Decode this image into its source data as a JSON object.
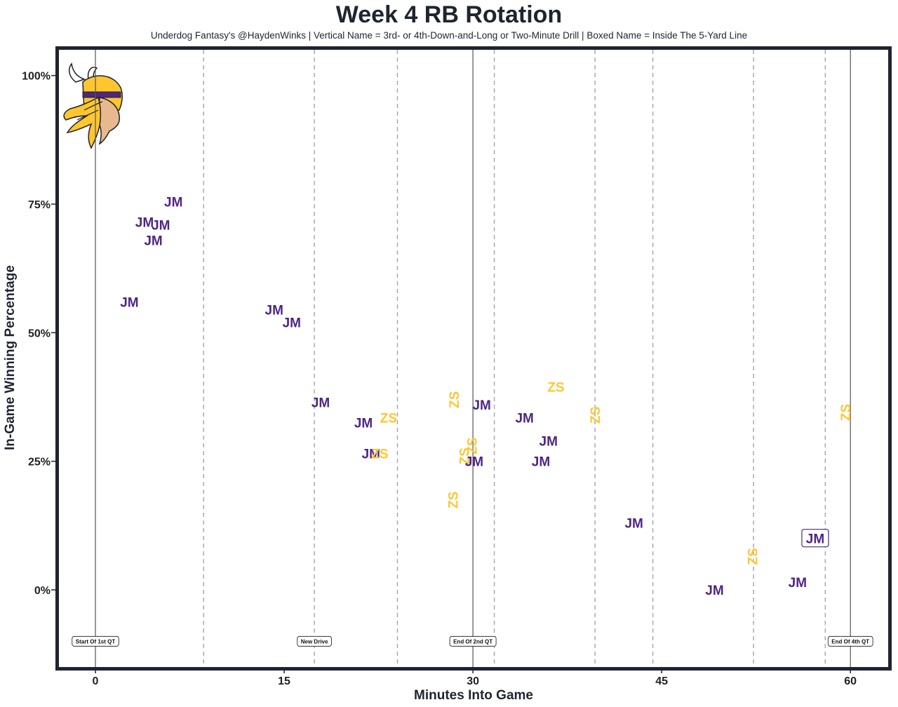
{
  "chart_data": {
    "type": "scatter",
    "title": "Week 4 RB Rotation",
    "subtitle": "Underdog Fantasy's @HaydenWinks | Vertical Name = 3rd- or 4th-Down-and-Long or Two-Minute Drill | Boxed Name = Inside The 5-Yard Line",
    "xlabel": "Minutes Into Game",
    "ylabel": "In-Game Winning Percentage",
    "xlim": [
      -2.9,
      63.0
    ],
    "ylim": [
      -15,
      105
    ],
    "xticks": [
      0,
      15,
      30,
      45,
      60
    ],
    "xtick_labels": [
      "0",
      "15",
      "30",
      "45",
      "60"
    ],
    "yticks": [
      0,
      25,
      50,
      75,
      100
    ],
    "ytick_labels": [
      "0%",
      "25%",
      "50%",
      "75%",
      "100%"
    ],
    "grid": false,
    "colors": {
      "JM": "#4f2683",
      "ZS": "#ffc62f",
      "frame": "#1f2430",
      "dashed": "#aaaaaa",
      "solid": "#555555"
    },
    "logo": "vikings-logo",
    "quarter_lines": [
      0,
      30,
      60
    ],
    "drive_lines": [
      8.6,
      17.4,
      24.0,
      31.7,
      39.7,
      44.3,
      52.3,
      58.0
    ],
    "annotations": [
      {
        "x": 0,
        "text": "Start Of 1st QT"
      },
      {
        "x": 17.4,
        "text": "New Drive"
      },
      {
        "x": 30,
        "text": "End Of 2nd QT"
      },
      {
        "x": 60,
        "text": "End Of 4th QT"
      }
    ],
    "points": [
      {
        "label": "JM",
        "x": 6.2,
        "y": 75.5,
        "vertical": false,
        "boxed": false
      },
      {
        "label": "JM",
        "x": 3.9,
        "y": 71.5,
        "vertical": false,
        "boxed": false
      },
      {
        "label": "JM",
        "x": 5.2,
        "y": 71.0,
        "vertical": false,
        "boxed": false
      },
      {
        "label": "JM",
        "x": 4.6,
        "y": 68.0,
        "vertical": false,
        "boxed": false
      },
      {
        "label": "JM",
        "x": 2.7,
        "y": 56.0,
        "vertical": false,
        "boxed": false
      },
      {
        "label": "JM",
        "x": 14.2,
        "y": 54.5,
        "vertical": false,
        "boxed": false
      },
      {
        "label": "JM",
        "x": 15.6,
        "y": 52.0,
        "vertical": false,
        "boxed": false
      },
      {
        "label": "JM",
        "x": 17.9,
        "y": 36.5,
        "vertical": false,
        "boxed": false
      },
      {
        "label": "JM",
        "x": 21.3,
        "y": 32.5,
        "vertical": false,
        "boxed": false
      },
      {
        "label": "ZS",
        "x": 23.3,
        "y": 33.5,
        "vertical": false,
        "boxed": false
      },
      {
        "label": "JM",
        "x": 21.9,
        "y": 26.5,
        "vertical": false,
        "boxed": false
      },
      {
        "label": "ZS",
        "x": 22.6,
        "y": 26.5,
        "vertical": false,
        "boxed": false
      },
      {
        "label": "ZS",
        "x": 28.5,
        "y": 37.0,
        "vertical": true,
        "boxed": false
      },
      {
        "label": "ZS",
        "x": 28.4,
        "y": 17.5,
        "vertical": true,
        "boxed": false
      },
      {
        "label": "ZS",
        "x": 29.3,
        "y": 26.0,
        "vertical": true,
        "boxed": false
      },
      {
        "label": "ZS",
        "x": 29.9,
        "y": 28.0,
        "vertical": true,
        "boxed": false
      },
      {
        "label": "JM",
        "x": 30.1,
        "y": 25.0,
        "vertical": false,
        "boxed": false
      },
      {
        "label": "JM",
        "x": 30.7,
        "y": 36.0,
        "vertical": false,
        "boxed": false
      },
      {
        "label": "JM",
        "x": 34.1,
        "y": 33.5,
        "vertical": false,
        "boxed": false
      },
      {
        "label": "ZS",
        "x": 36.6,
        "y": 39.5,
        "vertical": false,
        "boxed": false
      },
      {
        "label": "JM",
        "x": 36.0,
        "y": 29.0,
        "vertical": false,
        "boxed": false
      },
      {
        "label": "JM",
        "x": 35.4,
        "y": 25.0,
        "vertical": false,
        "boxed": false
      },
      {
        "label": "ZS",
        "x": 39.7,
        "y": 34.0,
        "vertical": true,
        "boxed": false
      },
      {
        "label": "JM",
        "x": 42.8,
        "y": 13.0,
        "vertical": false,
        "boxed": false
      },
      {
        "label": "ZS",
        "x": 52.2,
        "y": 6.5,
        "vertical": true,
        "boxed": false
      },
      {
        "label": "JM",
        "x": 49.2,
        "y": 0.0,
        "vertical": false,
        "boxed": false
      },
      {
        "label": "JM",
        "x": 55.8,
        "y": 1.5,
        "vertical": false,
        "boxed": false
      },
      {
        "label": "JM",
        "x": 57.2,
        "y": 10.0,
        "vertical": false,
        "boxed": true
      },
      {
        "label": "ZS",
        "x": 59.6,
        "y": 34.5,
        "vertical": true,
        "boxed": false
      }
    ]
  }
}
